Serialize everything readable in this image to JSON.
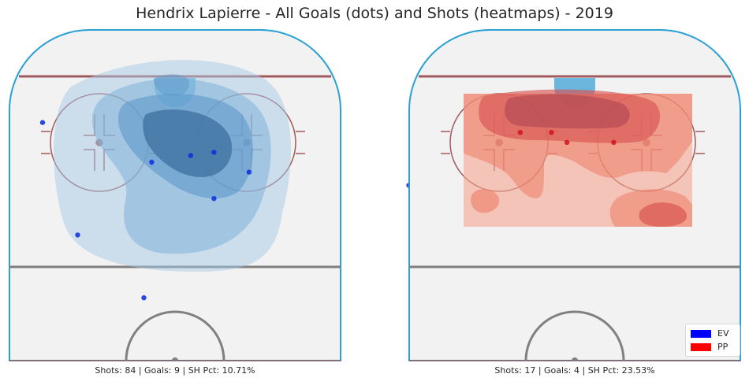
{
  "chart_data": {
    "title": "Hendrix Lapierre - All Goals (dots) and Shots (heatmaps) - 2019",
    "type": "scatter",
    "legend": {
      "placement": "bottom-right",
      "entries": [
        {
          "label": "EV",
          "color": "#0000ff"
        },
        {
          "label": "PP",
          "color": "#ff0000"
        }
      ]
    },
    "panels": [
      {
        "name": "EV",
        "caption": "Shots: 84 | Goals: 9 | SH Pct: 10.71%",
        "heatmap_color": "#3a8fc7",
        "goals": [
          {
            "x": 72,
            "y": 34
          },
          {
            "x": 38,
            "y": 25
          },
          {
            "x": 19,
            "y": 8
          },
          {
            "x": 60,
            "y": 6
          },
          {
            "x": 62,
            "y": -4
          },
          {
            "x": 63,
            "y": -10
          },
          {
            "x": 49,
            "y": -10
          },
          {
            "x": 57,
            "y": -19
          },
          {
            "x": 53,
            "y": -60
          }
        ]
      },
      {
        "name": "PP",
        "caption": "Shots: 17 | Goals: 4 | SH Pct: 23.53%",
        "heatmap_color": "#e0503c",
        "goals": [
          {
            "x": 69,
            "y": 14
          },
          {
            "x": 69,
            "y": 6
          },
          {
            "x": 66,
            "y": 2
          },
          {
            "x": 66,
            "y": -10
          }
        ]
      }
    ],
    "grid": false
  }
}
